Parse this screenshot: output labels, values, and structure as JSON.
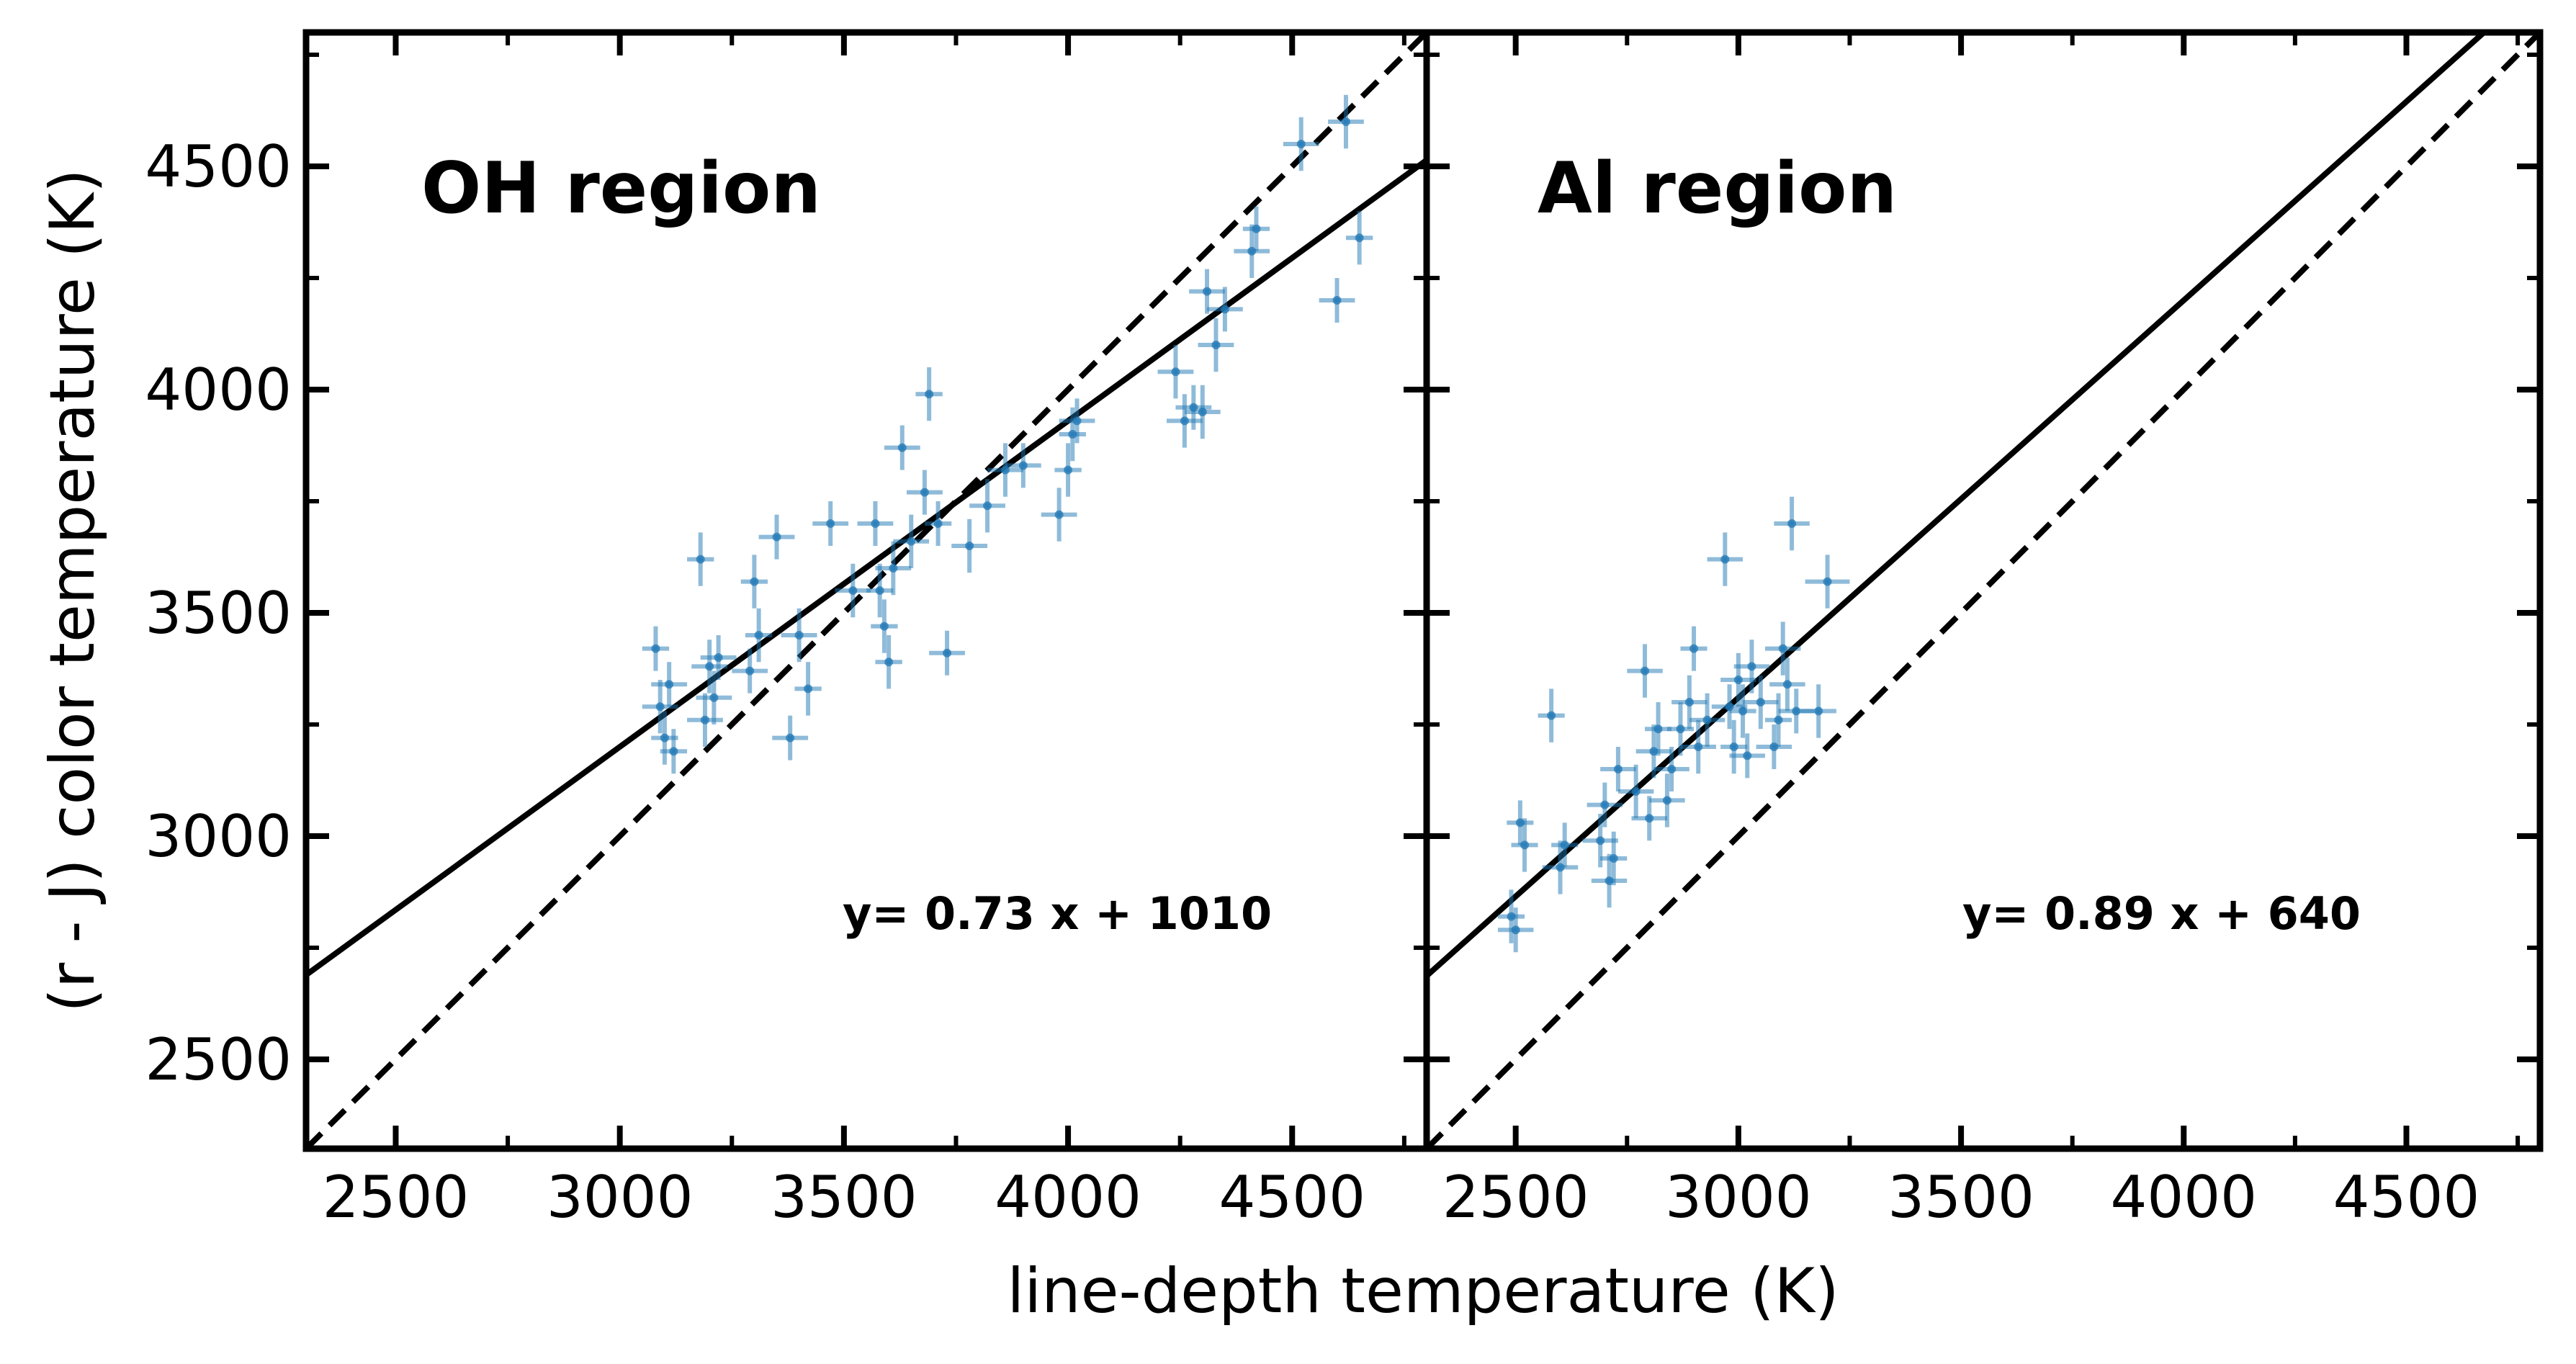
{
  "chart_data": [
    {
      "type": "scatter",
      "panel": "left",
      "title": "OH region",
      "fit_label": "y= 0.73 x + 1010",
      "fit": {
        "slope": 0.73,
        "intercept": 1010
      },
      "identity_line": {
        "slope": 1,
        "intercept": 0
      },
      "xlim": [
        2300,
        4800
      ],
      "ylim": [
        2300,
        4800
      ],
      "xticks": [
        2500,
        3000,
        3500,
        4000,
        4500
      ],
      "xtick_labels": [
        "2500",
        "3000",
        "3500",
        "4000",
        "4500"
      ],
      "yticks": [
        2500,
        3000,
        3500,
        4000,
        4500
      ],
      "ytick_labels": [
        "2500",
        "3000",
        "3500",
        "4000",
        "4500"
      ],
      "points": [
        [
          3080,
          3420,
          30,
          50
        ],
        [
          3090,
          3290,
          40,
          60
        ],
        [
          3100,
          3220,
          30,
          60
        ],
        [
          3110,
          3340,
          40,
          50
        ],
        [
          3120,
          3190,
          30,
          50
        ],
        [
          3180,
          3620,
          30,
          60
        ],
        [
          3190,
          3260,
          40,
          60
        ],
        [
          3200,
          3380,
          40,
          60
        ],
        [
          3210,
          3310,
          40,
          60
        ],
        [
          3220,
          3400,
          40,
          50
        ],
        [
          3290,
          3370,
          40,
          50
        ],
        [
          3300,
          3570,
          30,
          60
        ],
        [
          3310,
          3450,
          30,
          60
        ],
        [
          3350,
          3670,
          40,
          50
        ],
        [
          3380,
          3220,
          40,
          50
        ],
        [
          3400,
          3450,
          40,
          60
        ],
        [
          3420,
          3330,
          30,
          60
        ],
        [
          3470,
          3700,
          40,
          50
        ],
        [
          3520,
          3550,
          40,
          60
        ],
        [
          3570,
          3700,
          40,
          50
        ],
        [
          3580,
          3550,
          30,
          60
        ],
        [
          3590,
          3470,
          30,
          60
        ],
        [
          3600,
          3390,
          30,
          60
        ],
        [
          3610,
          3600,
          40,
          60
        ],
        [
          3630,
          3870,
          40,
          50
        ],
        [
          3650,
          3660,
          40,
          60
        ],
        [
          3680,
          3770,
          40,
          50
        ],
        [
          3690,
          3990,
          30,
          60
        ],
        [
          3710,
          3700,
          30,
          50
        ],
        [
          3730,
          3410,
          40,
          50
        ],
        [
          3780,
          3650,
          40,
          60
        ],
        [
          3820,
          3740,
          40,
          60
        ],
        [
          3860,
          3820,
          40,
          60
        ],
        [
          3900,
          3830,
          40,
          50
        ],
        [
          3980,
          3720,
          40,
          60
        ],
        [
          4000,
          3820,
          30,
          60
        ],
        [
          4010,
          3900,
          30,
          60
        ],
        [
          4020,
          3930,
          40,
          50
        ],
        [
          4240,
          4040,
          40,
          60
        ],
        [
          4260,
          3930,
          40,
          60
        ],
        [
          4280,
          3960,
          40,
          50
        ],
        [
          4300,
          3950,
          40,
          60
        ],
        [
          4310,
          4220,
          40,
          50
        ],
        [
          4330,
          4100,
          40,
          60
        ],
        [
          4350,
          4180,
          40,
          50
        ],
        [
          4410,
          4310,
          40,
          60
        ],
        [
          4420,
          4360,
          30,
          50
        ],
        [
          4520,
          4550,
          40,
          60
        ],
        [
          4600,
          4200,
          40,
          50
        ],
        [
          4620,
          4600,
          40,
          60
        ],
        [
          4650,
          4340,
          30,
          60
        ]
      ]
    },
    {
      "type": "scatter",
      "panel": "right",
      "title": "Al region",
      "fit_label": "y= 0.89 x + 640",
      "fit": {
        "slope": 0.89,
        "intercept": 640
      },
      "identity_line": {
        "slope": 1,
        "intercept": 0
      },
      "xlim": [
        2300,
        4800
      ],
      "ylim": [
        2300,
        4800
      ],
      "xticks": [
        2500,
        3000,
        3500,
        4000,
        4500
      ],
      "xtick_labels": [
        "2500",
        "3000",
        "3500",
        "4000",
        "4500"
      ],
      "yticks": [
        2500,
        3000,
        3500,
        4000,
        4500
      ],
      "points": [
        [
          2490,
          2820,
          30,
          60
        ],
        [
          2500,
          2790,
          40,
          50
        ],
        [
          2510,
          3030,
          30,
          50
        ],
        [
          2520,
          2980,
          30,
          60
        ],
        [
          2580,
          3270,
          30,
          60
        ],
        [
          2600,
          2930,
          40,
          60
        ],
        [
          2610,
          2980,
          30,
          50
        ],
        [
          2690,
          2990,
          40,
          60
        ],
        [
          2700,
          3070,
          40,
          50
        ],
        [
          2710,
          2900,
          40,
          60
        ],
        [
          2720,
          2950,
          30,
          60
        ],
        [
          2730,
          3150,
          40,
          50
        ],
        [
          2770,
          3100,
          40,
          60
        ],
        [
          2790,
          3370,
          40,
          60
        ],
        [
          2800,
          3040,
          40,
          50
        ],
        [
          2810,
          3190,
          40,
          60
        ],
        [
          2820,
          3240,
          30,
          60
        ],
        [
          2840,
          3080,
          40,
          60
        ],
        [
          2850,
          3150,
          40,
          50
        ],
        [
          2870,
          3240,
          30,
          60
        ],
        [
          2890,
          3300,
          40,
          60
        ],
        [
          2900,
          3420,
          30,
          50
        ],
        [
          2910,
          3200,
          40,
          60
        ],
        [
          2930,
          3260,
          40,
          60
        ],
        [
          2970,
          3620,
          40,
          60
        ],
        [
          2980,
          3290,
          40,
          50
        ],
        [
          2990,
          3200,
          30,
          60
        ],
        [
          3000,
          3350,
          40,
          60
        ],
        [
          3010,
          3280,
          30,
          60
        ],
        [
          3020,
          3180,
          40,
          50
        ],
        [
          3030,
          3380,
          40,
          60
        ],
        [
          3050,
          3300,
          40,
          60
        ],
        [
          3080,
          3200,
          40,
          50
        ],
        [
          3090,
          3260,
          30,
          60
        ],
        [
          3100,
          3420,
          40,
          60
        ],
        [
          3110,
          3340,
          40,
          60
        ],
        [
          3120,
          3700,
          40,
          60
        ],
        [
          3130,
          3280,
          40,
          50
        ],
        [
          3180,
          3280,
          40,
          60
        ],
        [
          3200,
          3570,
          50,
          60
        ]
      ]
    }
  ],
  "xlabel": "line-depth temperature (K)",
  "ylabel": "(r - J) color temperature (K)",
  "colors": {
    "points": "#1f77b4",
    "lines": "#000000",
    "frame": "#000000"
  }
}
